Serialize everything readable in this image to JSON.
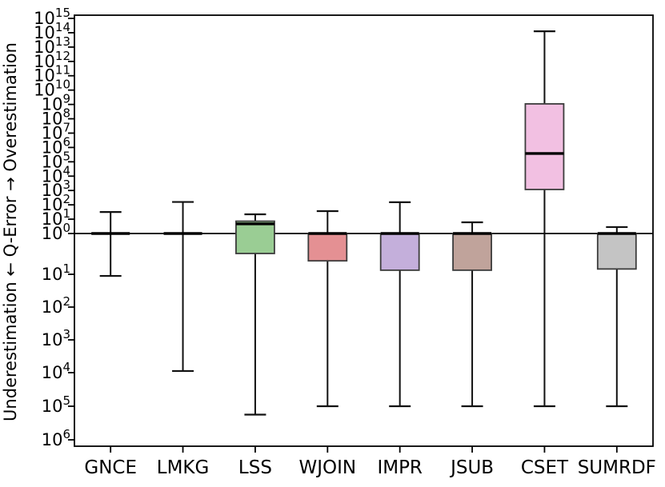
{
  "figure": {
    "background": "#ffffff",
    "text_color": "#000000"
  },
  "chart_data": {
    "type": "boxplot",
    "title": "",
    "xlabel": "",
    "ylabel": "Underestimation ← Q-Error → Overestimation",
    "y_scale": "log; values above 1 = overestimation, below 1 = underestimation (mirrored positive exponents below 1)",
    "reference_line": {
      "value": 1,
      "log10": 0
    },
    "grid": false,
    "legend": null,
    "y_ticks_top_to_bottom": [
      {
        "log10": 15,
        "label": "10^15",
        "exp_text": "15"
      },
      {
        "log10": 14,
        "label": "10^14",
        "exp_text": "14"
      },
      {
        "log10": 13,
        "label": "10^13",
        "exp_text": "13"
      },
      {
        "log10": 12,
        "label": "10^12",
        "exp_text": "12"
      },
      {
        "log10": 11,
        "label": "10^11",
        "exp_text": "11"
      },
      {
        "log10": 10,
        "label": "10^10",
        "exp_text": "10"
      },
      {
        "log10": 9,
        "label": "10^9",
        "exp_text": "9"
      },
      {
        "log10": 8,
        "label": "10^8",
        "exp_text": "8"
      },
      {
        "log10": 7,
        "label": "10^7",
        "exp_text": "7"
      },
      {
        "log10": 6,
        "label": "10^6",
        "exp_text": "6"
      },
      {
        "log10": 5,
        "label": "10^5",
        "exp_text": "5"
      },
      {
        "log10": 4,
        "label": "10^4",
        "exp_text": "4"
      },
      {
        "log10": 3,
        "label": "10^3",
        "exp_text": "3"
      },
      {
        "log10": 2,
        "label": "10^2",
        "exp_text": "2"
      },
      {
        "log10": 1,
        "label": "10^1",
        "exp_text": "1"
      },
      {
        "log10": 0,
        "label": "10^0",
        "exp_text": "0"
      },
      {
        "log10": -1,
        "label": "10^1",
        "exp_text": "1"
      },
      {
        "log10": -2,
        "label": "10^2",
        "exp_text": "2"
      },
      {
        "log10": -3,
        "label": "10^3",
        "exp_text": "3"
      },
      {
        "log10": -4,
        "label": "10^4",
        "exp_text": "4"
      },
      {
        "log10": -5,
        "label": "10^5",
        "exp_text": "5"
      },
      {
        "log10": -6,
        "label": "10^6",
        "exp_text": "6"
      }
    ],
    "categories": [
      "GNCE",
      "LMKG",
      "LSS",
      "WJOIN",
      "IMPR",
      "JSUB",
      "CSET",
      "SUMRDF"
    ],
    "series": [
      {
        "label": "GNCE",
        "box_color": null,
        "edge_color": "#3c3c3c",
        "log10": {
          "whisker_low": -1.05,
          "q1": 0,
          "median": 0,
          "q3": 0,
          "whisker_high": 1.5
        },
        "approx_values": {
          "whisker_low": "0.09",
          "q1": "1",
          "median": "1",
          "q3": "1",
          "whisker_high": "30"
        }
      },
      {
        "label": "LMKG",
        "box_color": null,
        "edge_color": "#3c3c3c",
        "log10": {
          "whisker_low": -3.95,
          "q1": 0,
          "median": 0,
          "q3": 0,
          "whisker_high": 2.2
        },
        "approx_values": {
          "whisker_low": "1e-4",
          "q1": "1",
          "median": "1",
          "q3": "1",
          "whisker_high": "160"
        }
      },
      {
        "label": "LSS",
        "box_color": "#9acd94",
        "edge_color": "#3c3c3c",
        "log10": {
          "whisker_low": -5.25,
          "q1": -0.49,
          "median": 0.67,
          "q3": 0.86,
          "whisker_high": 1.34
        },
        "approx_values": {
          "whisker_low": "6e-6",
          "q1": "0.32",
          "median": "4.7",
          "q3": "7.3",
          "whisker_high": "22"
        }
      },
      {
        "label": "WJOIN",
        "box_color": "#e49093",
        "edge_color": "#3c3c3c",
        "log10": {
          "whisker_low": -5.0,
          "q1": -0.67,
          "median": 0,
          "q3": 0,
          "whisker_high": 1.56
        },
        "approx_values": {
          "whisker_low": "1e-5",
          "q1": "0.21",
          "median": "1",
          "q3": "1",
          "whisker_high": "36"
        }
      },
      {
        "label": "IMPR",
        "box_color": "#c4afdb",
        "edge_color": "#3c3c3c",
        "log10": {
          "whisker_low": -5.0,
          "q1": -0.9,
          "median": 0,
          "q3": 0,
          "whisker_high": 2.18
        },
        "approx_values": {
          "whisker_low": "1e-5",
          "q1": "0.13",
          "median": "1",
          "q3": "1",
          "whisker_high": "150"
        }
      },
      {
        "label": "JSUB",
        "box_color": "#c0a39b",
        "edge_color": "#3c3c3c",
        "log10": {
          "whisker_low": -5.0,
          "q1": -0.9,
          "median": 0,
          "q3": 0,
          "whisker_high": 0.78
        },
        "approx_values": {
          "whisker_low": "1e-5",
          "q1": "0.13",
          "median": "1",
          "q3": "1",
          "whisker_high": "6"
        }
      },
      {
        "label": "CSET",
        "box_color": "#f2c0e2",
        "edge_color": "#3c3c3c",
        "log10": {
          "whisker_low": -5.0,
          "q1": 3.07,
          "median": 5.58,
          "q3": 9.04,
          "whisker_high": 14.1
        },
        "approx_values": {
          "whisker_low": "1e-5",
          "q1": "1.2e3",
          "median": "3.8e5",
          "q3": "1.1e9",
          "whisker_high": "1.2e14"
        }
      },
      {
        "label": "SUMRDF",
        "box_color": "#c4c4c4",
        "edge_color": "#3c3c3c",
        "log10": {
          "whisker_low": -5.0,
          "q1": -0.87,
          "median": 0,
          "q3": 0,
          "whisker_high": 0.45
        },
        "approx_values": {
          "whisker_low": "1e-5",
          "q1": "0.13",
          "median": "1",
          "q3": "1",
          "whisker_high": "2.8"
        }
      }
    ]
  }
}
